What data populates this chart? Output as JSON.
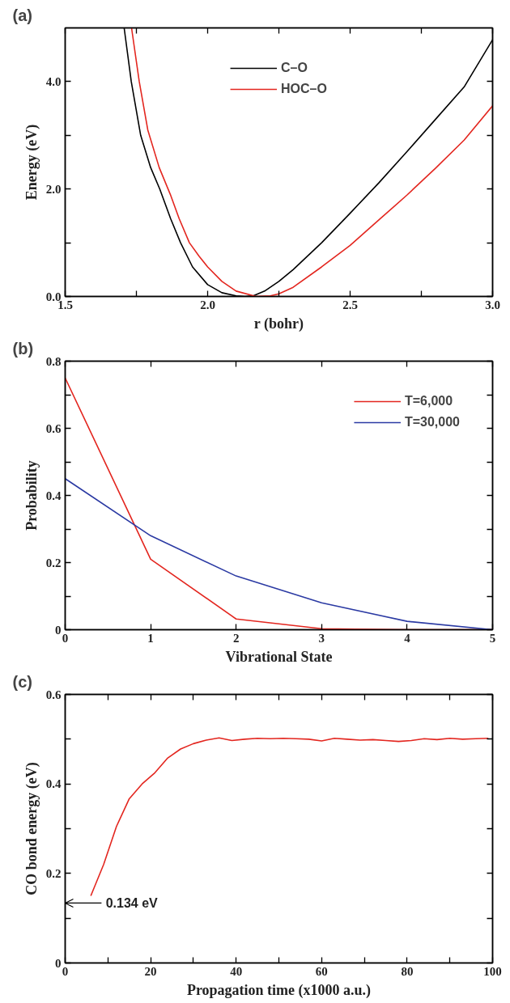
{
  "chart_data": [
    {
      "type": "line",
      "title": "(a)",
      "xlabel": "r (bohr)",
      "ylabel": "Energy (eV)",
      "legend": "top",
      "grid": false,
      "xlim": [
        1.5,
        3.0
      ],
      "ylim": [
        0,
        5
      ],
      "xticks": [
        {
          "value": 1.5,
          "label": "1.5"
        },
        {
          "value": 1.75,
          "label": null
        },
        {
          "value": 2.0,
          "label": "2.0"
        },
        {
          "value": 2.25,
          "label": null
        },
        {
          "value": 2.5,
          "label": "2.5"
        },
        {
          "value": 2.75,
          "label": null
        },
        {
          "value": 3.0,
          "label": "3.0"
        }
      ],
      "yticks": [
        {
          "value": 0,
          "label": "0.0"
        },
        {
          "value": 1,
          "label": null
        },
        {
          "value": 2,
          "label": "2.0"
        },
        {
          "value": 3,
          "label": null
        },
        {
          "value": 4,
          "label": "4.0"
        }
      ],
      "series": [
        {
          "name": "C–O",
          "color": "#000000",
          "x": [
            1.707,
            1.732,
            1.765,
            1.8,
            1.832,
            1.87,
            1.905,
            1.947,
            2.0,
            2.05,
            2.1,
            2.13,
            2.16,
            2.2,
            2.25,
            2.3,
            2.4,
            2.5,
            2.6,
            2.7,
            2.8,
            2.9,
            3.0
          ],
          "values": [
            5.0,
            4.0,
            3.0,
            2.4,
            2.0,
            1.45,
            1.0,
            0.55,
            0.22,
            0.07,
            0.01,
            0.0,
            0.01,
            0.1,
            0.28,
            0.5,
            1.0,
            1.55,
            2.11,
            2.7,
            3.3,
            3.9,
            4.78
          ]
        },
        {
          "name": "HOC–O",
          "color": "#e3261f",
          "x": [
            1.733,
            1.76,
            1.79,
            1.83,
            1.869,
            1.9,
            1.936,
            1.97,
            2.0,
            2.05,
            2.1,
            2.17,
            2.22,
            2.25,
            2.3,
            2.4,
            2.5,
            2.6,
            2.7,
            2.8,
            2.9,
            3.0
          ],
          "values": [
            5.0,
            4.0,
            3.1,
            2.4,
            1.9,
            1.45,
            1.0,
            0.75,
            0.55,
            0.28,
            0.1,
            0.0,
            0.01,
            0.05,
            0.17,
            0.55,
            0.95,
            1.42,
            1.89,
            2.39,
            2.91,
            3.55
          ]
        }
      ]
    },
    {
      "type": "line",
      "title": "(b)",
      "xlabel": "Vibrational State",
      "ylabel": "Probability",
      "legend": "top right",
      "grid": false,
      "xlim": [
        0,
        5
      ],
      "ylim": [
        0,
        0.8
      ],
      "xticks": [
        0,
        1,
        2,
        3,
        4,
        5
      ],
      "yticks": [
        0,
        {
          "value": 0.1,
          "label": null
        },
        0.2,
        {
          "value": 0.3,
          "label": null
        },
        0.4,
        {
          "value": 0.5,
          "label": null
        },
        0.6,
        {
          "value": 0.7,
          "label": null
        },
        0.8
      ],
      "series": [
        {
          "name": "T=6,000",
          "color": "#e3261f",
          "x": [
            0,
            1,
            2,
            3,
            4,
            5
          ],
          "values": [
            0.75,
            0.21,
            0.032,
            0.003,
            0.0,
            0.0
          ]
        },
        {
          "name": "T=30,000",
          "color": "#2b3aa3",
          "x": [
            0,
            1,
            2,
            3,
            4,
            5
          ],
          "values": [
            0.45,
            0.28,
            0.16,
            0.08,
            0.025,
            0.0
          ]
        }
      ]
    },
    {
      "type": "line",
      "title": "(c)",
      "xlabel": "Propagation time (x1000 a.u.)",
      "ylabel": "CO bond energy (eV)",
      "grid": false,
      "xlim": [
        0,
        100
      ],
      "ylim": [
        0,
        0.6
      ],
      "xticks": [
        0,
        {
          "value": 10,
          "label": null
        },
        20,
        {
          "value": 30,
          "label": null
        },
        40,
        {
          "value": 50,
          "label": null
        },
        60,
        {
          "value": 70,
          "label": null
        },
        80,
        {
          "value": 90,
          "label": null
        },
        100
      ],
      "yticks": [
        0,
        {
          "value": 0.1,
          "label": null
        },
        0.2,
        {
          "value": 0.3,
          "label": null
        },
        0.4,
        {
          "value": 0.5,
          "label": null
        },
        0.6
      ],
      "annotations": [
        "0.134 eV"
      ],
      "series": [
        {
          "color": "#e3261f",
          "x": [
            6,
            9,
            12,
            15,
            18,
            21,
            24,
            27,
            30,
            33,
            36,
            39,
            42,
            45,
            48,
            51,
            54,
            57,
            60,
            63,
            66,
            69,
            72,
            75,
            78,
            81,
            84,
            87,
            90,
            93,
            96,
            99
          ],
          "values": [
            0.15,
            0.22,
            0.305,
            0.367,
            0.4,
            0.425,
            0.458,
            0.478,
            0.49,
            0.498,
            0.503,
            0.497,
            0.5,
            0.502,
            0.501,
            0.502,
            0.501,
            0.5,
            0.496,
            0.502,
            0.5,
            0.498,
            0.499,
            0.497,
            0.495,
            0.497,
            0.501,
            0.499,
            0.502,
            0.5,
            0.501,
            0.502
          ]
        }
      ]
    }
  ]
}
